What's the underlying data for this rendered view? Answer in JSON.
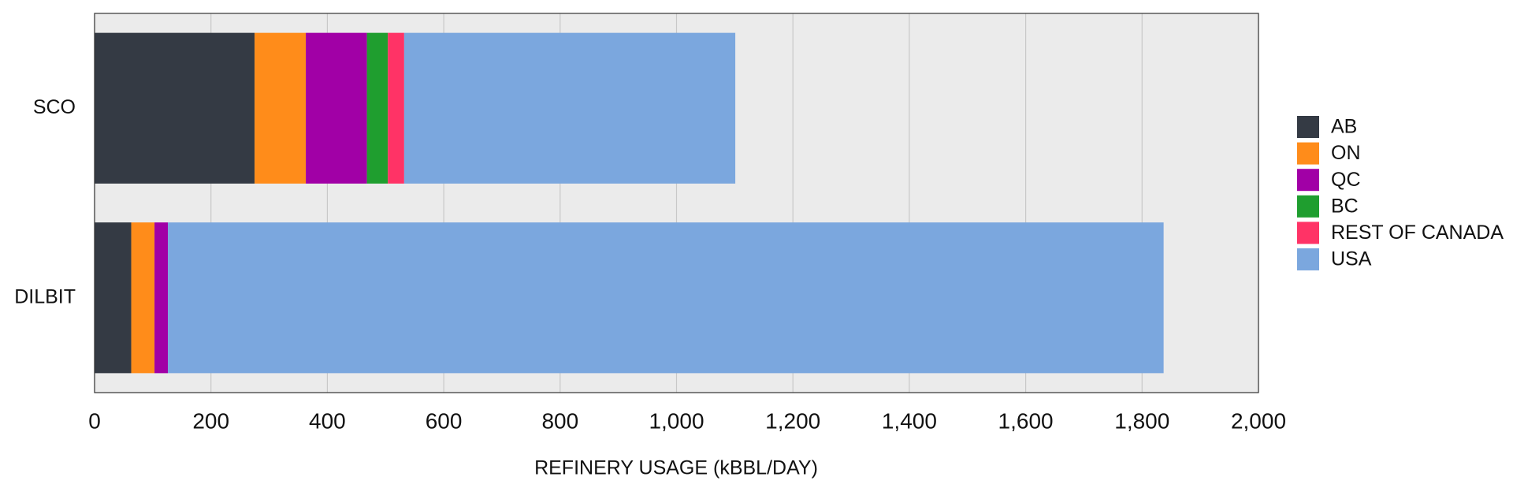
{
  "chart_data": {
    "type": "stacked-barh",
    "xlabel": "REFINERY USAGE (kBBL/DAY)",
    "categories": [
      "SCO",
      "DILBIT"
    ],
    "series": [
      {
        "name": "AB",
        "color": "#343a44",
        "values": [
          275,
          63
        ]
      },
      {
        "name": "ON",
        "color": "#ff8c1a",
        "values": [
          88,
          40
        ]
      },
      {
        "name": "QC",
        "color": "#a100a6",
        "values": [
          105,
          23
        ]
      },
      {
        "name": "BC",
        "color": "#1f9e2f",
        "values": [
          36,
          0
        ]
      },
      {
        "name": "REST OF CANADA",
        "color": "#ff3366",
        "values": [
          28,
          0
        ]
      },
      {
        "name": "USA",
        "color": "#7ba7de",
        "values": [
          569,
          1711
        ]
      }
    ],
    "xlim": [
      0,
      2000
    ],
    "xticks": [
      0,
      200,
      400,
      600,
      800,
      {
        "value": 1000,
        "label": "1,000"
      },
      {
        "value": 1200,
        "label": "1,200"
      },
      {
        "value": 1400,
        "label": "1,400"
      },
      {
        "value": 1600,
        "label": "1,600"
      },
      {
        "value": 1800,
        "label": "1,800"
      },
      {
        "value": 2000,
        "label": "2,000"
      }
    ],
    "grid": true,
    "legend": "right"
  }
}
